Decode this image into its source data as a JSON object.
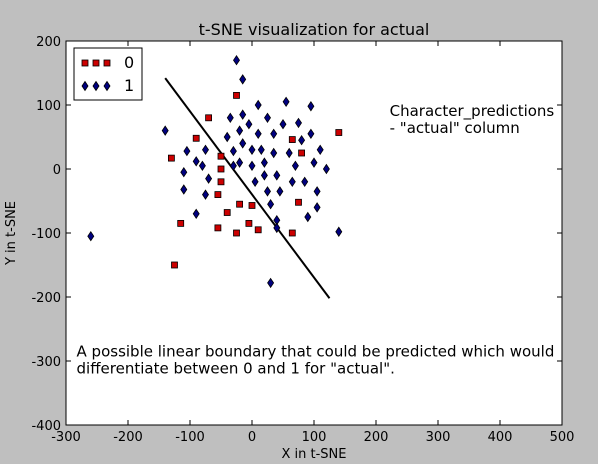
{
  "chart_data": {
    "type": "scatter",
    "title": "t-SNE visualization for actual",
    "xlabel": "X in t-SNE",
    "ylabel": "Y in t-SNE",
    "xlim": [
      -300,
      500
    ],
    "ylim": [
      -400,
      200
    ],
    "xticks": [
      -300,
      -200,
      -100,
      0,
      100,
      200,
      300,
      400,
      500
    ],
    "yticks": [
      -400,
      -300,
      -200,
      -100,
      0,
      100,
      200
    ],
    "grid": false,
    "legend_position": "top-left",
    "series": [
      {
        "name": "0",
        "marker": "square",
        "color": "#cc0000",
        "points": [
          [
            -70,
            80
          ],
          [
            -90,
            48
          ],
          [
            -130,
            17
          ],
          [
            -50,
            20
          ],
          [
            -50,
            0
          ],
          [
            -50,
            -20
          ],
          [
            -55,
            -40
          ],
          [
            -40,
            -68
          ],
          [
            -55,
            -92
          ],
          [
            -115,
            -85
          ],
          [
            -125,
            -150
          ],
          [
            -25,
            -100
          ],
          [
            -20,
            -55
          ],
          [
            0,
            -57
          ],
          [
            -5,
            -85
          ],
          [
            10,
            -95
          ],
          [
            -25,
            115
          ],
          [
            65,
            -100
          ],
          [
            75,
            -52
          ],
          [
            65,
            46
          ],
          [
            80,
            25
          ],
          [
            140,
            57
          ]
        ]
      },
      {
        "name": "1",
        "marker": "diamond",
        "color": "#00007f",
        "points": [
          [
            -25,
            170
          ],
          [
            -15,
            140
          ],
          [
            -140,
            60
          ],
          [
            -105,
            28
          ],
          [
            -110,
            -5
          ],
          [
            -110,
            -32
          ],
          [
            -90,
            -70
          ],
          [
            -90,
            12
          ],
          [
            -75,
            30
          ],
          [
            -80,
            5
          ],
          [
            -70,
            -15
          ],
          [
            -75,
            -40
          ],
          [
            -40,
            50
          ],
          [
            -35,
            80
          ],
          [
            -30,
            28
          ],
          [
            -30,
            5
          ],
          [
            -20,
            10
          ],
          [
            -20,
            60
          ],
          [
            -15,
            40
          ],
          [
            -15,
            85
          ],
          [
            -5,
            70
          ],
          [
            0,
            30
          ],
          [
            0,
            5
          ],
          [
            5,
            -20
          ],
          [
            10,
            100
          ],
          [
            10,
            55
          ],
          [
            15,
            30
          ],
          [
            20,
            10
          ],
          [
            20,
            -10
          ],
          [
            25,
            -35
          ],
          [
            25,
            80
          ],
          [
            30,
            -55
          ],
          [
            35,
            55
          ],
          [
            35,
            25
          ],
          [
            40,
            -10
          ],
          [
            40,
            -80
          ],
          [
            40,
            -92
          ],
          [
            45,
            -35
          ],
          [
            50,
            70
          ],
          [
            55,
            105
          ],
          [
            60,
            25
          ],
          [
            65,
            -20
          ],
          [
            70,
            5
          ],
          [
            75,
            72
          ],
          [
            80,
            45
          ],
          [
            85,
            -20
          ],
          [
            90,
            -75
          ],
          [
            95,
            98
          ],
          [
            95,
            55
          ],
          [
            100,
            10
          ],
          [
            105,
            -35
          ],
          [
            105,
            -60
          ],
          [
            110,
            30
          ],
          [
            120,
            0
          ],
          [
            140,
            -98
          ],
          [
            30,
            -178
          ],
          [
            -260,
            -105
          ]
        ]
      }
    ],
    "lines": [
      {
        "x": [
          -140,
          125
        ],
        "y": [
          142,
          -202
        ],
        "color": "#000000"
      }
    ],
    "annotations": [
      {
        "lines": [
          "Character_predictions",
          "- \"actual\" column"
        ],
        "x": 222,
        "y": 83
      },
      {
        "lines": [
          "A possible linear boundary that could be predicted which would",
          "differentiate between 0 and 1 for \"actual\"."
        ],
        "x": -283,
        "y": -293
      }
    ]
  }
}
